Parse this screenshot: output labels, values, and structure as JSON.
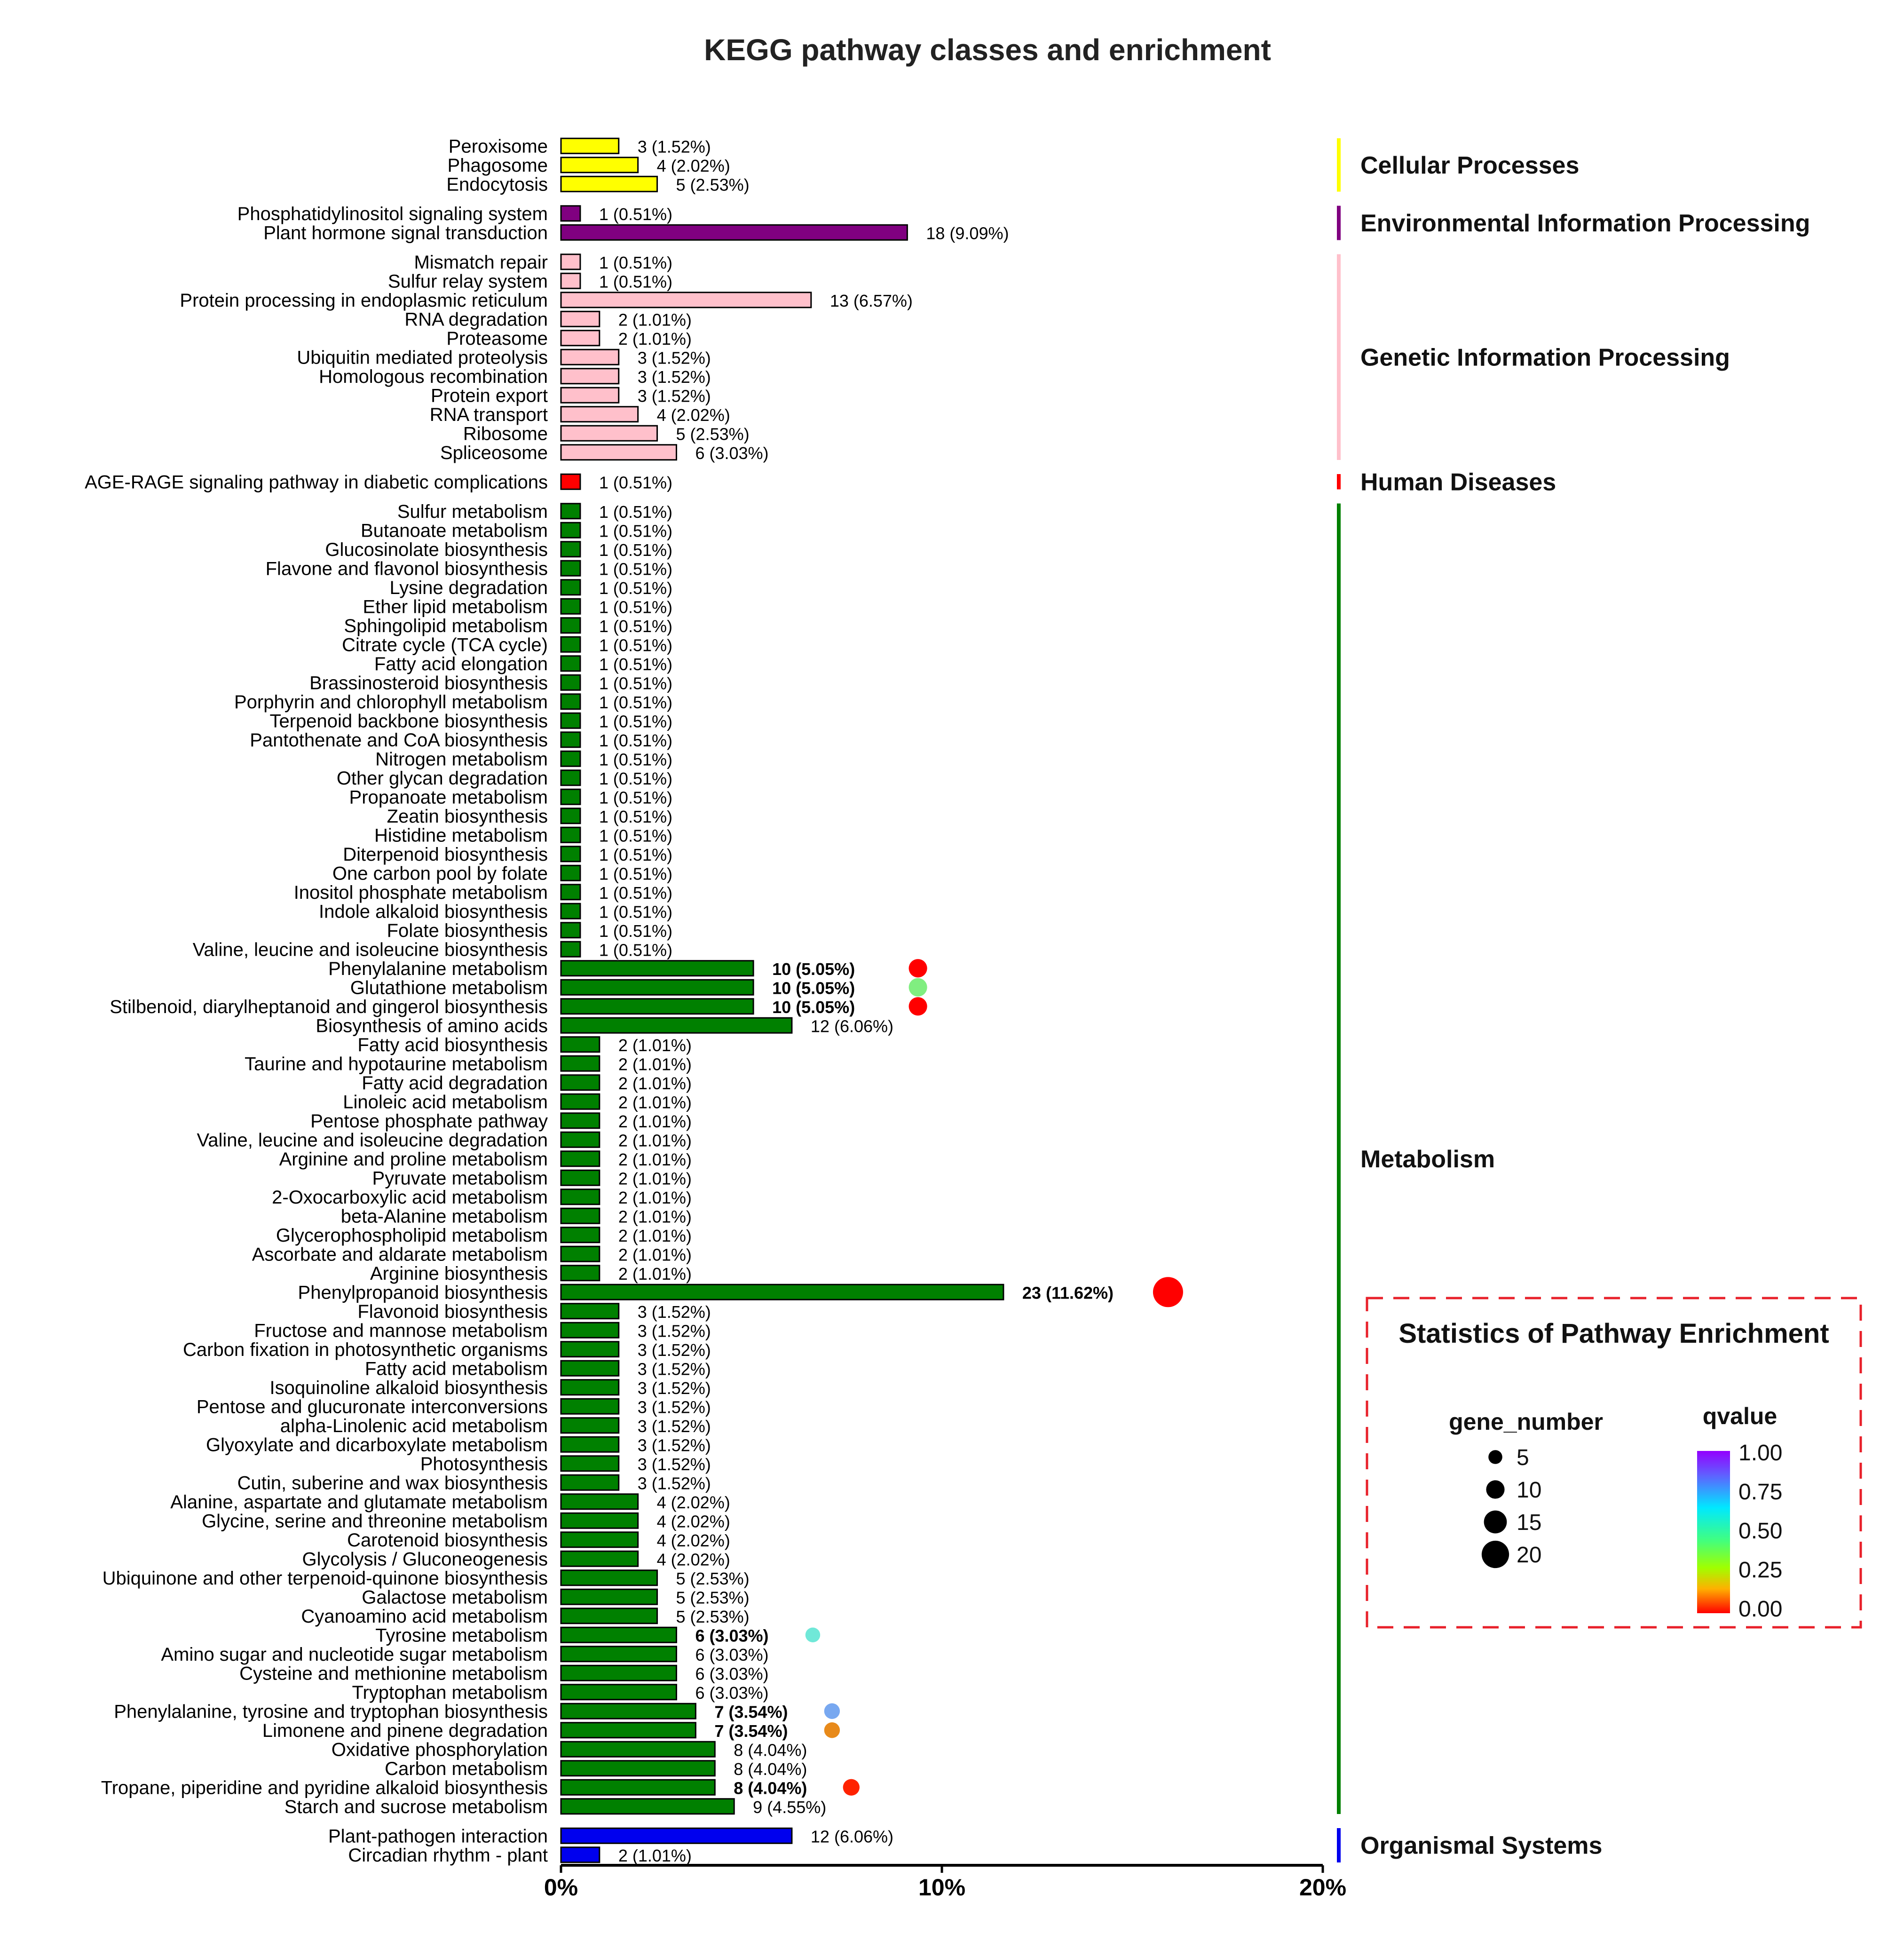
{
  "chart_data": {
    "type": "bar",
    "orientation": "horizontal",
    "title": "KEGG pathway classes and enrichment",
    "xlim": [
      0,
      20
    ],
    "x_ticks": [
      "0%",
      "10%",
      "20%"
    ],
    "groups": [
      {
        "name": "Cellular Processes",
        "color": "#ffff00",
        "items": [
          {
            "label": "Peroxisome",
            "value": 3,
            "pct": "1.52%"
          },
          {
            "label": "Phagosome",
            "value": 4,
            "pct": "2.02%"
          },
          {
            "label": "Endocytosis",
            "value": 5,
            "pct": "2.53%"
          }
        ]
      },
      {
        "name": "Environmental Information Processing",
        "color": "#800080",
        "items": [
          {
            "label": "Phosphatidylinositol signaling system",
            "value": 1,
            "pct": "0.51%"
          },
          {
            "label": "Plant hormone signal transduction",
            "value": 18,
            "pct": "9.09%"
          }
        ]
      },
      {
        "name": "Genetic Information Processing",
        "color": "#ffc0cb",
        "items": [
          {
            "label": "Mismatch repair",
            "value": 1,
            "pct": "0.51%"
          },
          {
            "label": "Sulfur relay system",
            "value": 1,
            "pct": "0.51%"
          },
          {
            "label": "Protein processing in endoplasmic reticulum",
            "value": 13,
            "pct": "6.57%"
          },
          {
            "label": "RNA degradation",
            "value": 2,
            "pct": "1.01%"
          },
          {
            "label": "Proteasome",
            "value": 2,
            "pct": "1.01%"
          },
          {
            "label": "Ubiquitin mediated proteolysis",
            "value": 3,
            "pct": "1.52%"
          },
          {
            "label": "Homologous recombination",
            "value": 3,
            "pct": "1.52%"
          },
          {
            "label": "Protein export",
            "value": 3,
            "pct": "1.52%"
          },
          {
            "label": "RNA transport",
            "value": 4,
            "pct": "2.02%"
          },
          {
            "label": "Ribosome",
            "value": 5,
            "pct": "2.53%"
          },
          {
            "label": "Spliceosome",
            "value": 6,
            "pct": "3.03%"
          }
        ]
      },
      {
        "name": "Human Diseases",
        "color": "#ff0000",
        "items": [
          {
            "label": "AGE-RAGE signaling pathway in diabetic complications",
            "value": 1,
            "pct": "0.51%"
          }
        ]
      },
      {
        "name": "Metabolism",
        "color": "#008000",
        "items": [
          {
            "label": "Sulfur metabolism",
            "value": 1,
            "pct": "0.51%"
          },
          {
            "label": "Butanoate metabolism",
            "value": 1,
            "pct": "0.51%"
          },
          {
            "label": "Glucosinolate biosynthesis",
            "value": 1,
            "pct": "0.51%"
          },
          {
            "label": "Flavone and flavonol biosynthesis",
            "value": 1,
            "pct": "0.51%"
          },
          {
            "label": "Lysine degradation",
            "value": 1,
            "pct": "0.51%"
          },
          {
            "label": "Ether lipid metabolism",
            "value": 1,
            "pct": "0.51%"
          },
          {
            "label": "Sphingolipid metabolism",
            "value": 1,
            "pct": "0.51%"
          },
          {
            "label": "Citrate cycle (TCA cycle)",
            "value": 1,
            "pct": "0.51%"
          },
          {
            "label": "Fatty acid elongation",
            "value": 1,
            "pct": "0.51%"
          },
          {
            "label": "Brassinosteroid biosynthesis",
            "value": 1,
            "pct": "0.51%"
          },
          {
            "label": "Porphyrin and chlorophyll metabolism",
            "value": 1,
            "pct": "0.51%"
          },
          {
            "label": "Terpenoid backbone biosynthesis",
            "value": 1,
            "pct": "0.51%"
          },
          {
            "label": "Pantothenate and CoA biosynthesis",
            "value": 1,
            "pct": "0.51%"
          },
          {
            "label": "Nitrogen metabolism",
            "value": 1,
            "pct": "0.51%"
          },
          {
            "label": "Other glycan degradation",
            "value": 1,
            "pct": "0.51%"
          },
          {
            "label": "Propanoate metabolism",
            "value": 1,
            "pct": "0.51%"
          },
          {
            "label": "Zeatin biosynthesis",
            "value": 1,
            "pct": "0.51%"
          },
          {
            "label": "Histidine metabolism",
            "value": 1,
            "pct": "0.51%"
          },
          {
            "label": "Diterpenoid biosynthesis",
            "value": 1,
            "pct": "0.51%"
          },
          {
            "label": "One carbon pool by folate",
            "value": 1,
            "pct": "0.51%"
          },
          {
            "label": "Inositol phosphate metabolism",
            "value": 1,
            "pct": "0.51%"
          },
          {
            "label": "Indole alkaloid biosynthesis",
            "value": 1,
            "pct": "0.51%"
          },
          {
            "label": "Folate biosynthesis",
            "value": 1,
            "pct": "0.51%"
          },
          {
            "label": "Valine, leucine and isoleucine biosynthesis",
            "value": 1,
            "pct": "0.51%"
          },
          {
            "label": "Phenylalanine metabolism",
            "value": 10,
            "pct": "5.05%",
            "enriched": true,
            "dot_color": "#ff0000"
          },
          {
            "label": "Glutathione metabolism",
            "value": 10,
            "pct": "5.05%",
            "enriched": true,
            "dot_color": "#80ee80"
          },
          {
            "label": "Stilbenoid, diarylheptanoid and gingerol biosynthesis",
            "value": 10,
            "pct": "5.05%",
            "enriched": true,
            "dot_color": "#ff0000"
          },
          {
            "label": "Biosynthesis of amino acids",
            "value": 12,
            "pct": "6.06%"
          },
          {
            "label": "Fatty acid biosynthesis",
            "value": 2,
            "pct": "1.01%"
          },
          {
            "label": "Taurine and hypotaurine metabolism",
            "value": 2,
            "pct": "1.01%"
          },
          {
            "label": "Fatty acid degradation",
            "value": 2,
            "pct": "1.01%"
          },
          {
            "label": "Linoleic acid metabolism",
            "value": 2,
            "pct": "1.01%"
          },
          {
            "label": "Pentose phosphate pathway",
            "value": 2,
            "pct": "1.01%"
          },
          {
            "label": "Valine, leucine and isoleucine degradation",
            "value": 2,
            "pct": "1.01%"
          },
          {
            "label": "Arginine and proline metabolism",
            "value": 2,
            "pct": "1.01%"
          },
          {
            "label": "Pyruvate metabolism",
            "value": 2,
            "pct": "1.01%"
          },
          {
            "label": "2-Oxocarboxylic acid metabolism",
            "value": 2,
            "pct": "1.01%"
          },
          {
            "label": "beta-Alanine metabolism",
            "value": 2,
            "pct": "1.01%"
          },
          {
            "label": "Glycerophospholipid metabolism",
            "value": 2,
            "pct": "1.01%"
          },
          {
            "label": "Ascorbate and aldarate metabolism",
            "value": 2,
            "pct": "1.01%"
          },
          {
            "label": "Arginine biosynthesis",
            "value": 2,
            "pct": "1.01%"
          },
          {
            "label": "Phenylpropanoid biosynthesis",
            "value": 23,
            "pct": "11.62%",
            "enriched": true,
            "dot_color": "#ff0000"
          },
          {
            "label": "Flavonoid biosynthesis",
            "value": 3,
            "pct": "1.52%"
          },
          {
            "label": "Fructose and mannose metabolism",
            "value": 3,
            "pct": "1.52%"
          },
          {
            "label": "Carbon fixation in photosynthetic organisms",
            "value": 3,
            "pct": "1.52%"
          },
          {
            "label": "Fatty acid metabolism",
            "value": 3,
            "pct": "1.52%"
          },
          {
            "label": "Isoquinoline alkaloid biosynthesis",
            "value": 3,
            "pct": "1.52%"
          },
          {
            "label": "Pentose and glucuronate interconversions",
            "value": 3,
            "pct": "1.52%"
          },
          {
            "label": "alpha-Linolenic acid metabolism",
            "value": 3,
            "pct": "1.52%"
          },
          {
            "label": "Glyoxylate and dicarboxylate metabolism",
            "value": 3,
            "pct": "1.52%"
          },
          {
            "label": "Photosynthesis",
            "value": 3,
            "pct": "1.52%"
          },
          {
            "label": "Cutin, suberine and wax biosynthesis",
            "value": 3,
            "pct": "1.52%"
          },
          {
            "label": "Alanine, aspartate and glutamate metabolism",
            "value": 4,
            "pct": "2.02%"
          },
          {
            "label": "Glycine, serine and threonine metabolism",
            "value": 4,
            "pct": "2.02%"
          },
          {
            "label": "Carotenoid biosynthesis",
            "value": 4,
            "pct": "2.02%"
          },
          {
            "label": "Glycolysis / Gluconeogenesis",
            "value": 4,
            "pct": "2.02%"
          },
          {
            "label": "Ubiquinone and other terpenoid-quinone biosynthesis",
            "value": 5,
            "pct": "2.53%"
          },
          {
            "label": "Galactose metabolism",
            "value": 5,
            "pct": "2.53%"
          },
          {
            "label": "Cyanoamino acid metabolism",
            "value": 5,
            "pct": "2.53%"
          },
          {
            "label": "Tyrosine metabolism",
            "value": 6,
            "pct": "3.03%",
            "enriched": true,
            "dot_color": "#70e8d8"
          },
          {
            "label": "Amino sugar and nucleotide sugar metabolism",
            "value": 6,
            "pct": "3.03%"
          },
          {
            "label": "Cysteine and methionine metabolism",
            "value": 6,
            "pct": "3.03%"
          },
          {
            "label": "Tryptophan metabolism",
            "value": 6,
            "pct": "3.03%"
          },
          {
            "label": "Phenylalanine, tyrosine and tryptophan biosynthesis",
            "value": 7,
            "pct": "3.54%",
            "enriched": true,
            "dot_color": "#78a8f0"
          },
          {
            "label": "Limonene and pinene degradation",
            "value": 7,
            "pct": "3.54%",
            "enriched": true,
            "dot_color": "#e88a1a"
          },
          {
            "label": "Oxidative phosphorylation",
            "value": 8,
            "pct": "4.04%"
          },
          {
            "label": "Carbon metabolism",
            "value": 8,
            "pct": "4.04%"
          },
          {
            "label": "Tropane, piperidine and pyridine alkaloid biosynthesis",
            "value": 8,
            "pct": "4.04%",
            "enriched": true,
            "dot_color": "#ff2200"
          },
          {
            "label": "Starch and sucrose metabolism",
            "value": 9,
            "pct": "4.55%"
          }
        ]
      },
      {
        "name": "Organismal Systems",
        "color": "#0000ee",
        "items": [
          {
            "label": "Plant-pathogen interaction",
            "value": 12,
            "pct": "6.06%"
          },
          {
            "label": "Circadian rhythm - plant",
            "value": 2,
            "pct": "1.01%"
          }
        ]
      }
    ],
    "legend": {
      "title": "Statistics of Pathway Enrichment",
      "size_title": "gene_number",
      "sizes": [
        5,
        10,
        15,
        20
      ],
      "color_title": "qvalue",
      "color_ticks": [
        "1.00",
        "0.75",
        "0.50",
        "0.25",
        "0.00"
      ]
    }
  }
}
